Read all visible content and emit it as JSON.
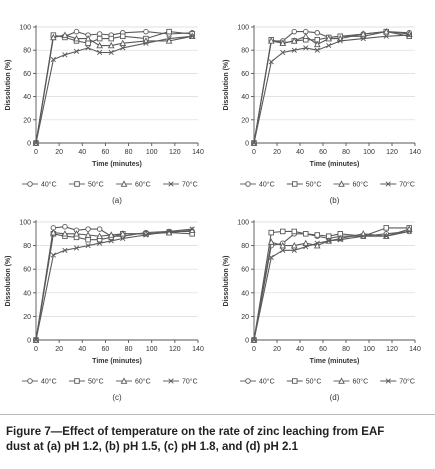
{
  "caption": {
    "line1": "Figure 7—Effect of temperature on the rate of zinc leaching from EAF",
    "line2": "dust at (a) pH 1.2, (b) pH 1.5, (c) pH 1.8, and (d) pH 2.1"
  },
  "series_style": [
    {
      "name": "40°C",
      "marker": "circle",
      "color": "#5a5a5a"
    },
    {
      "name": "50°C",
      "marker": "square",
      "color": "#5a5a5a"
    },
    {
      "name": "60°C",
      "marker": "triangle",
      "color": "#5a5a5a"
    },
    {
      "name": "70°C",
      "marker": "cross",
      "color": "#5a5a5a"
    }
  ],
  "chart_data": [
    {
      "type": "line",
      "panel_label": "(a)",
      "xlabel": "Time (minutes)",
      "ylabel": "Dissolution (%)",
      "xlim": [
        0,
        140
      ],
      "ylim": [
        0,
        100
      ],
      "xticks": [
        0,
        20,
        40,
        60,
        80,
        100,
        120,
        140
      ],
      "yticks": [
        0,
        20,
        40,
        60,
        80,
        100
      ],
      "grid": "horizontal",
      "legend": "bottom",
      "x": [
        0,
        15,
        25,
        35,
        45,
        55,
        65,
        75,
        95,
        115,
        135
      ],
      "series": [
        {
          "name": "40°C",
          "values": [
            0,
            92,
            92,
            96,
            93,
            94,
            93,
            95,
            96,
            94,
            95
          ]
        },
        {
          "name": "50°C",
          "values": [
            0,
            93,
            91,
            88,
            86,
            90,
            90,
            92,
            90,
            96,
            94
          ]
        },
        {
          "name": "60°C",
          "values": [
            0,
            91,
            93,
            90,
            90,
            84,
            84,
            86,
            88,
            88,
            92
          ]
        },
        {
          "name": "70°C",
          "values": [
            0,
            72,
            76,
            79,
            82,
            78,
            78,
            82,
            86,
            90,
            92
          ]
        }
      ]
    },
    {
      "type": "line",
      "panel_label": "(b)",
      "xlabel": "Time (minutes)",
      "ylabel": "Dissolution (%)",
      "xlim": [
        0,
        140
      ],
      "ylim": [
        0,
        100
      ],
      "xticks": [
        0,
        20,
        40,
        60,
        80,
        100,
        120,
        140
      ],
      "yticks": [
        0,
        20,
        40,
        60,
        80,
        100
      ],
      "grid": "horizontal",
      "legend": "bottom",
      "x": [
        0,
        15,
        25,
        35,
        45,
        55,
        65,
        75,
        95,
        115,
        135
      ],
      "series": [
        {
          "name": "40°C",
          "values": [
            0,
            88,
            88,
            96,
            96,
            95,
            91,
            92,
            94,
            96,
            95
          ]
        },
        {
          "name": "50°C",
          "values": [
            0,
            89,
            86,
            88,
            89,
            89,
            91,
            92,
            92,
            96,
            92
          ]
        },
        {
          "name": "60°C",
          "values": [
            0,
            88,
            86,
            88,
            92,
            85,
            90,
            90,
            94,
            96,
            94
          ]
        },
        {
          "name": "70°C",
          "values": [
            0,
            70,
            78,
            80,
            82,
            80,
            84,
            88,
            90,
            92,
            93
          ]
        }
      ]
    },
    {
      "type": "line",
      "panel_label": "(c)",
      "xlabel": "Time (minutes)",
      "ylabel": "Dissolution (%)",
      "xlim": [
        0,
        140
      ],
      "ylim": [
        0,
        100
      ],
      "xticks": [
        0,
        20,
        40,
        60,
        80,
        100,
        120,
        140
      ],
      "yticks": [
        0,
        20,
        40,
        60,
        80,
        100
      ],
      "grid": "horizontal",
      "legend": "bottom",
      "x": [
        0,
        15,
        25,
        35,
        45,
        55,
        65,
        75,
        95,
        115,
        135
      ],
      "series": [
        {
          "name": "40°C",
          "values": [
            0,
            95,
            96,
            93,
            94,
            94,
            88,
            88,
            91,
            92,
            92
          ]
        },
        {
          "name": "50°C",
          "values": [
            0,
            90,
            88,
            87,
            85,
            85,
            87,
            90,
            90,
            91,
            90
          ]
        },
        {
          "name": "60°C",
          "values": [
            0,
            91,
            90,
            90,
            89,
            88,
            89,
            90,
            90,
            91,
            93
          ]
        },
        {
          "name": "70°C",
          "values": [
            0,
            72,
            76,
            78,
            80,
            82,
            84,
            86,
            89,
            92,
            94
          ]
        }
      ]
    },
    {
      "type": "line",
      "panel_label": "(d)",
      "xlabel": "Time (minutes)",
      "ylabel": "Dissolution (%)",
      "xlim": [
        0,
        140
      ],
      "ylim": [
        0,
        100
      ],
      "xticks": [
        0,
        20,
        40,
        60,
        80,
        100,
        120,
        140
      ],
      "yticks": [
        0,
        20,
        40,
        60,
        80,
        100
      ],
      "grid": "horizontal",
      "legend": "bottom",
      "x": [
        0,
        15,
        25,
        35,
        45,
        55,
        65,
        75,
        95,
        115,
        135
      ],
      "series": [
        {
          "name": "40°C",
          "values": [
            0,
            80,
            82,
            90,
            90,
            88,
            86,
            88,
            88,
            90,
            92
          ]
        },
        {
          "name": "50°C",
          "values": [
            0,
            91,
            92,
            92,
            90,
            89,
            88,
            90,
            88,
            95,
            95
          ]
        },
        {
          "name": "60°C",
          "values": [
            0,
            83,
            80,
            80,
            82,
            80,
            84,
            86,
            90,
            88,
            94
          ]
        },
        {
          "name": "70°C",
          "values": [
            0,
            70,
            76,
            76,
            79,
            82,
            84,
            85,
            88,
            88,
            92
          ]
        }
      ]
    }
  ]
}
